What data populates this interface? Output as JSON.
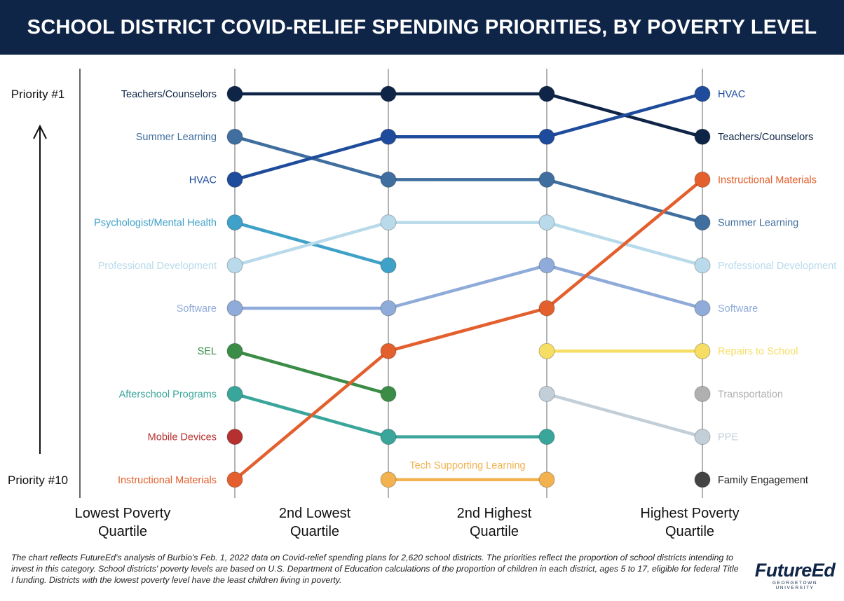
{
  "header": {
    "title": "SCHOOL DISTRICT COVID-RELIEF SPENDING PRIORITIES, BY POVERTY LEVEL"
  },
  "chart_data": {
    "type": "line",
    "chart_subtype": "bump",
    "title": "SCHOOL DISTRICT COVID-RELIEF SPENDING PRIORITIES, BY POVERTY LEVEL",
    "y_top_label": "Priority #1",
    "y_bottom_label": "Priority #10",
    "y_axis_range": [
      1,
      10
    ],
    "y_axis_direction": "rank 1 at top, rank 10 at bottom",
    "categories": [
      "Lowest Poverty Quartile",
      "2nd Lowest Quartile",
      "2nd Highest Quartile",
      "Highest Poverty Quartile"
    ],
    "category_labels": [
      [
        "Lowest Poverty",
        "Quartile"
      ],
      [
        "2nd Lowest",
        "Quartile"
      ],
      [
        "2nd Highest",
        "Quartile"
      ],
      [
        "Highest Poverty",
        "Quartile"
      ]
    ],
    "series": [
      {
        "name": "Teachers/Counselors",
        "color": "#0f2547",
        "ranks": [
          1,
          1,
          1,
          2
        ]
      },
      {
        "name": "Summer Learning",
        "color": "#3f6e9f",
        "ranks": [
          2,
          3,
          3,
          4
        ]
      },
      {
        "name": "HVAC",
        "color": "#1e4b9b",
        "ranks": [
          3,
          2,
          2,
          1
        ]
      },
      {
        "name": "Psychologist/Mental Health",
        "color": "#3fa1c8",
        "ranks": [
          4,
          5,
          null,
          null
        ]
      },
      {
        "name": "Professional Development",
        "color": "#b8daea",
        "ranks": [
          5,
          4,
          4,
          5
        ]
      },
      {
        "name": "Software",
        "color": "#8fabd9",
        "ranks": [
          6,
          6,
          5,
          6
        ]
      },
      {
        "name": "SEL",
        "color": "#3a8c47",
        "ranks": [
          7,
          8,
          null,
          null
        ]
      },
      {
        "name": "Afterschool Programs",
        "color": "#3aa59a",
        "ranks": [
          8,
          9,
          9,
          null
        ]
      },
      {
        "name": "Mobile Devices",
        "color": "#b5302f",
        "ranks": [
          9,
          null,
          null,
          null
        ]
      },
      {
        "name": "Instructional Materials",
        "color": "#e35f2d",
        "ranks": [
          10,
          7,
          6,
          3
        ]
      },
      {
        "name": "Tech Supporting Learning",
        "color": "#f1b24f",
        "ranks": [
          null,
          10,
          10,
          null
        ]
      },
      {
        "name": "Repairs to School",
        "color": "#f6dd64",
        "ranks": [
          null,
          null,
          7,
          7
        ]
      },
      {
        "name": "Transportation",
        "color": "#b0b0b0",
        "ranks": [
          null,
          null,
          null,
          8
        ]
      },
      {
        "name": "PPE",
        "color": "#c3cfd8",
        "ranks": [
          null,
          null,
          8,
          9
        ]
      },
      {
        "name": "Family Engagement",
        "color": "#444444",
        "ranks": [
          null,
          null,
          null,
          10
        ]
      }
    ],
    "left_labels": [
      {
        "rank": 1,
        "label": "Teachers/Counselors",
        "color": "#0f2547"
      },
      {
        "rank": 2,
        "label": "Summer Learning",
        "color": "#3f6e9f"
      },
      {
        "rank": 3,
        "label": "HVAC",
        "color": "#1e4b9b"
      },
      {
        "rank": 4,
        "label": "Psychologist/Mental Health",
        "color": "#3fa1c8"
      },
      {
        "rank": 5,
        "label": "Professional Development",
        "color": "#b8daea"
      },
      {
        "rank": 6,
        "label": "Software",
        "color": "#8fabd9"
      },
      {
        "rank": 7,
        "label": "SEL",
        "color": "#3a8c47"
      },
      {
        "rank": 8,
        "label": "Afterschool Programs",
        "color": "#3aa59a"
      },
      {
        "rank": 9,
        "label": "Mobile Devices",
        "color": "#b5302f"
      },
      {
        "rank": 10,
        "label": "Instructional Materials",
        "color": "#e35f2d"
      }
    ],
    "right_labels": [
      {
        "rank": 1,
        "label": "HVAC",
        "color": "#1e4b9b"
      },
      {
        "rank": 2,
        "label": "Teachers/Counselors",
        "color": "#0f2547"
      },
      {
        "rank": 3,
        "label": "Instructional Materials",
        "color": "#e35f2d"
      },
      {
        "rank": 4,
        "label": "Summer Learning",
        "color": "#3f6e9f"
      },
      {
        "rank": 5,
        "label": "Professional Development",
        "color": "#b8daea"
      },
      {
        "rank": 6,
        "label": "Software",
        "color": "#8fabd9"
      },
      {
        "rank": 7,
        "label": "Repairs to School",
        "color": "#f6dd64"
      },
      {
        "rank": 8,
        "label": "Transportation",
        "color": "#b0b0b0"
      },
      {
        "rank": 9,
        "label": "PPE",
        "color": "#c3cfd8"
      },
      {
        "rank": 10,
        "label": "Family Engagement",
        "color": "#222222"
      }
    ],
    "annotations": [
      {
        "label": "Tech Supporting Learning",
        "color": "#f1b24f"
      }
    ]
  },
  "footnote": "The chart reflects FutureEd's analysis of Burbio's Feb. 1, 2022 data on Covid-relief spending plans for 2,620 school districts. The priorities reflect the proportion of school districts intending to invest in this category. School districts' poverty levels are based on U.S. Department of Education calculations of the proportion of children in each district, ages 5 to 17, eligible for federal Title I funding. Districts with the lowest poverty level have the least children living in poverty.",
  "logo": {
    "main": "FutureEd",
    "sub": "GEORGETOWN UNIVERSITY"
  }
}
